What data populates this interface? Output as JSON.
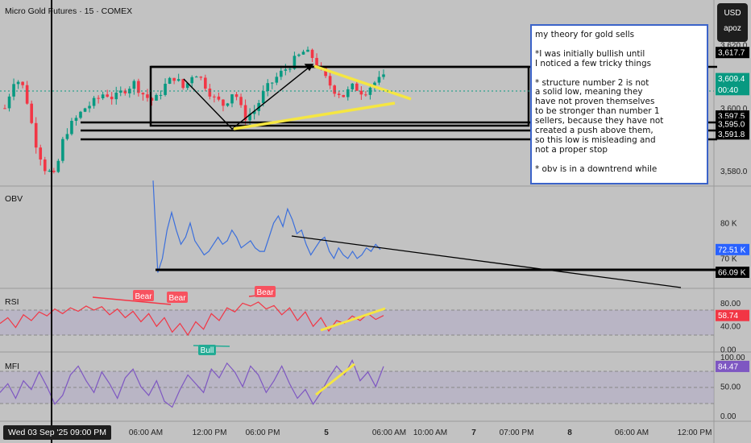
{
  "header": {
    "title": "Micro Gold Futures · 15 · COMEX"
  },
  "currency": {
    "code": "USD",
    "user": "apoz"
  },
  "note": {
    "lines": [
      "my theory for gold sells",
      "",
      "*I was initially bullish until",
      "I noticed a few tricky things",
      "",
      "* structure number 2 is not",
      "a solid low, meaning they",
      "have not proven themselves",
      "to be stronger than number 1",
      "sellers, because they have not",
      "created a push above them,",
      "so this low is misleading and",
      "not a proper stop",
      "",
      "* obv is in a downtrend while"
    ]
  },
  "crosshair_date": "Wed 03 Sep '25   09:00 PM",
  "colors": {
    "up": "#089981",
    "down": "#f23645",
    "yellow": "#f5e642",
    "obv": "#3b6fdc",
    "rsi": "#f23645",
    "mfi": "#7e57c2",
    "label_bull": "#22ab94",
    "label_bear": "#f7525f"
  },
  "chart_data": [
    {
      "type": "candlestick",
      "title": "Micro Gold Futures · 15 · COMEX",
      "y_ticks": [
        "3,620.0",
        "3,600.0",
        "3,580.0"
      ],
      "price_labels": [
        {
          "text": "3,617.7",
          "value": 3617.7,
          "style": "black"
        },
        {
          "text": "3,609.4",
          "value": 3609.4,
          "style": "green"
        },
        {
          "text": "00:40",
          "value": 3605.9,
          "style": "green"
        },
        {
          "text": "3,597.5",
          "value": 3597.5,
          "style": "black"
        },
        {
          "text": "3,595.0",
          "value": 3595.0,
          "style": "black"
        },
        {
          "text": "3,591.8",
          "value": 3591.8,
          "style": "black"
        }
      ],
      "horizontal_levels": [
        3617.7,
        3597.5,
        3595.0,
        3591.8
      ],
      "current_price": 3609.4,
      "ylim": [
        3576,
        3628
      ],
      "x_ticks": [
        "06:00 AM",
        "12:00 PM",
        "06:00 PM",
        "5",
        "06:00 AM",
        "10:00 AM",
        "7",
        "07:00 PM",
        "8",
        "06:00 AM",
        "12:00 PM"
      ]
    },
    {
      "type": "line",
      "title": "OBV",
      "y_ticks": [
        "80 K",
        "70 K"
      ],
      "price_labels": [
        {
          "text": "72.51 K",
          "value": 72.51,
          "style": "blue"
        },
        {
          "text": "66.09 K",
          "value": 66.09,
          "style": "black"
        }
      ],
      "ylim": [
        62,
        90
      ],
      "series": [
        {
          "values": [
            92,
            66,
            70,
            78,
            83,
            78,
            74,
            76,
            80,
            75,
            73,
            71,
            72,
            74,
            76,
            74,
            75,
            78,
            76,
            73,
            74,
            75,
            73,
            72,
            72,
            76,
            80,
            82,
            79,
            84,
            81,
            77,
            78,
            74,
            71,
            73,
            75,
            76,
            72,
            70,
            73,
            71,
            70,
            72,
            70,
            71,
            73,
            72,
            74,
            72.51
          ]
        }
      ]
    },
    {
      "type": "line",
      "title": "RSI",
      "y_ticks": [
        "80.00",
        "40.00",
        "0.00"
      ],
      "price_labels": [
        {
          "text": "58.74",
          "value": 58.74,
          "style": "red"
        }
      ],
      "ylim": [
        0,
        100
      ],
      "bands": [
        70,
        30
      ],
      "annotations": [
        {
          "text": "Bear"
        },
        {
          "text": "Bear"
        },
        {
          "text": "Bear"
        },
        {
          "text": "Bull"
        }
      ],
      "series": [
        {
          "values": [
            45,
            55,
            38,
            60,
            50,
            65,
            58,
            70,
            62,
            72,
            66,
            75,
            68,
            74,
            60,
            70,
            55,
            66,
            48,
            62,
            40,
            55,
            30,
            45,
            25,
            48,
            35,
            62,
            50,
            72,
            65,
            80,
            75,
            82,
            70,
            76,
            60,
            72,
            50,
            65,
            40,
            55,
            32,
            50,
            45,
            58,
            50,
            62,
            52,
            58.74
          ]
        }
      ]
    },
    {
      "type": "line",
      "title": "MFI",
      "y_ticks": [
        "100.00",
        "50.00",
        "0.00"
      ],
      "price_labels": [
        {
          "text": "84.47",
          "value": 84.47,
          "style": "purple"
        }
      ],
      "ylim": [
        -5,
        105
      ],
      "bands": [
        80,
        20
      ],
      "series": [
        {
          "values": [
            40,
            55,
            30,
            60,
            45,
            75,
            50,
            20,
            35,
            70,
            85,
            60,
            40,
            75,
            55,
            30,
            65,
            80,
            50,
            35,
            60,
            25,
            15,
            45,
            70,
            55,
            40,
            80,
            65,
            90,
            75,
            50,
            85,
            70,
            40,
            60,
            85,
            55,
            30,
            45,
            20,
            40,
            65,
            85,
            70,
            95,
            60,
            75,
            50,
            84.47
          ]
        }
      ]
    }
  ]
}
